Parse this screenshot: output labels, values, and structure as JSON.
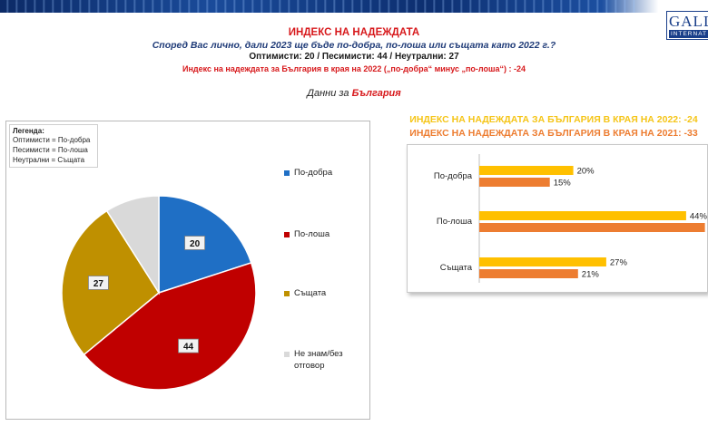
{
  "header": {
    "title": "ИНДЕКС НА НАДЕЖДАТА",
    "question": "Според Вас лично, дали 2023 ще бъде по-добра, по-лоша или същата като 2022 г.?",
    "counts": "Оптимисти: 20 / Песимисти: 44 / Неутрални: 27",
    "index_line": "Индекс на надеждата за България в края на 2022 („по-добра“ минус „по-лоша“) : -24",
    "subhead_prefix": "Данни за ",
    "subhead_country": "България"
  },
  "logo": {
    "text": "GALL",
    "sub": "INTERNAT"
  },
  "pie_legend": {
    "title": "Легенда:",
    "definitions": [
      "Оптимисти = По-добра",
      "Песимисти = По-лоша",
      "Неутрални = Същата"
    ]
  },
  "bar_titles": {
    "index_2022": "ИНДЕКС НА НАДЕЖДАТА ЗА БЪЛГАРИЯ В КРАЯ НА 2022: -24",
    "index_2021": "ИНДЕКС НА НАДЕЖДАТА ЗА БЪЛГАРИЯ В КРАЯ НА 2021: -33"
  },
  "colors": {
    "title_red": "#d7191c",
    "pie_better": "#1f6fc5",
    "pie_worse": "#c00000",
    "pie_same": "#bf9000",
    "pie_dk": "#d9d9d9",
    "bar_2022": "#ffc000",
    "bar_2021": "#ed7d31"
  },
  "chart_data": [
    {
      "type": "pie",
      "slices": [
        {
          "label": "По-добра",
          "value": 20,
          "value_label": "20",
          "color": "#1f6fc5"
        },
        {
          "label": "По-лоша",
          "value": 44,
          "value_label": "44",
          "color": "#c00000"
        },
        {
          "label": "Същата",
          "value": 27,
          "value_label": "27",
          "color": "#bf9000"
        },
        {
          "label": "Не знам/без отговор",
          "value": 9,
          "value_label": "",
          "color": "#d9d9d9"
        }
      ],
      "legend_position": "right"
    },
    {
      "type": "bar",
      "orientation": "horizontal",
      "categories": [
        "По-добра",
        "По-лоша",
        "Същата"
      ],
      "series": [
        {
          "values": [
            20,
            44,
            27
          ],
          "value_labels": [
            "20%",
            "44%",
            "27%"
          ],
          "color": "#ffc000"
        },
        {
          "values": [
            15,
            48,
            21
          ],
          "value_labels": [
            "15%",
            "48%",
            "21%"
          ],
          "color": "#ed7d31"
        }
      ],
      "xlim": [
        0,
        50
      ],
      "grid": false
    }
  ]
}
